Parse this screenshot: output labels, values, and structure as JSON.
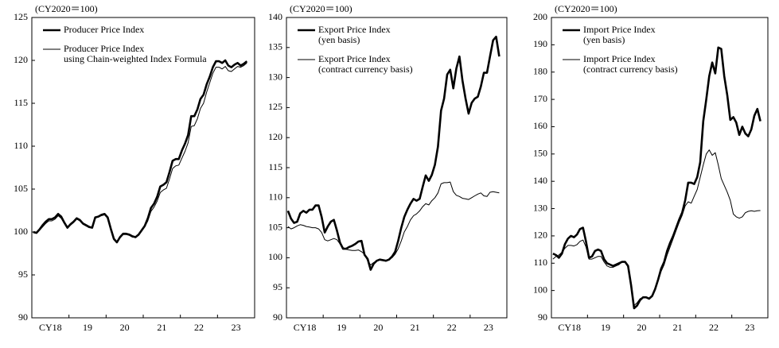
{
  "chart_data": [
    {
      "type": "line",
      "unit_note": "(CY2020＝100)",
      "ylim": [
        90,
        125
      ],
      "yticks": [
        90,
        95,
        100,
        105,
        110,
        115,
        120,
        125
      ],
      "categories": [
        "CY18",
        null,
        null,
        null,
        null,
        null,
        null,
        null,
        null,
        null,
        null,
        null,
        "19",
        null,
        null,
        null,
        null,
        null,
        null,
        null,
        null,
        null,
        null,
        null,
        "20",
        null,
        null,
        null,
        null,
        null,
        null,
        null,
        null,
        null,
        null,
        null,
        "21",
        null,
        null,
        null,
        null,
        null,
        null,
        null,
        null,
        null,
        null,
        null,
        "22",
        null,
        null,
        null,
        null,
        null,
        null,
        null,
        null,
        null,
        null,
        null,
        "23",
        null,
        null,
        null,
        null,
        null,
        null,
        null,
        null,
        null
      ],
      "series": [
        {
          "name": "Producer Price Index",
          "color": "#000000",
          "width": 2.6,
          "values": [
            100,
            99.9,
            100.3,
            100.8,
            101.2,
            101.5,
            101.5,
            101.7,
            102.1,
            101.8,
            101.1,
            100.5,
            100.9,
            101.2,
            101.6,
            101.4,
            101.0,
            100.8,
            100.6,
            100.5,
            101.7,
            101.8,
            102.0,
            102.1,
            101.7,
            100.4,
            99.2,
            98.8,
            99.4,
            99.8,
            99.8,
            99.7,
            99.5,
            99.4,
            99.7,
            100.2,
            100.7,
            101.6,
            102.8,
            103.3,
            104.1,
            105.3,
            105.5,
            105.8,
            107.0,
            108.3,
            108.5,
            108.5,
            109.5,
            110.3,
            111.3,
            113.5,
            113.5,
            114.3,
            115.5,
            116.0,
            117.2,
            118.1,
            119.2,
            119.9,
            119.9,
            119.7,
            120.0,
            119.4,
            119.2,
            119.5,
            119.7,
            119.4,
            119.6,
            119.9
          ]
        },
        {
          "name": "Producer Price Index\nusing Chain-weighted Index Formula",
          "color": "#000000",
          "width": 1,
          "values": [
            99.9,
            99.9,
            100.2,
            100.6,
            101.0,
            101.3,
            101.3,
            101.5,
            101.9,
            101.6,
            101.0,
            100.5,
            100.8,
            101.1,
            101.5,
            101.3,
            100.9,
            100.7,
            100.5,
            100.5,
            101.6,
            101.8,
            101.9,
            102.0,
            101.6,
            100.3,
            99.1,
            98.8,
            99.3,
            99.7,
            99.7,
            99.6,
            99.4,
            99.4,
            99.6,
            100.1,
            100.6,
            101.3,
            102.4,
            102.9,
            103.6,
            104.6,
            104.9,
            105.1,
            106.2,
            107.4,
            107.7,
            107.8,
            108.6,
            109.4,
            110.4,
            112.3,
            112.4,
            113.2,
            114.4,
            115.0,
            116.3,
            117.4,
            118.5,
            119.2,
            119.2,
            119.0,
            119.3,
            118.8,
            118.7,
            119.0,
            119.3,
            119.2,
            119.4,
            119.7
          ]
        }
      ]
    },
    {
      "type": "line",
      "unit_note": "(CY2020＝100)",
      "ylim": [
        90,
        140
      ],
      "yticks": [
        90,
        95,
        100,
        105,
        110,
        115,
        120,
        125,
        130,
        135,
        140
      ],
      "categories": [
        "CY18",
        null,
        null,
        null,
        null,
        null,
        null,
        null,
        null,
        null,
        null,
        null,
        "19",
        null,
        null,
        null,
        null,
        null,
        null,
        null,
        null,
        null,
        null,
        null,
        "20",
        null,
        null,
        null,
        null,
        null,
        null,
        null,
        null,
        null,
        null,
        null,
        "21",
        null,
        null,
        null,
        null,
        null,
        null,
        null,
        null,
        null,
        null,
        null,
        "22",
        null,
        null,
        null,
        null,
        null,
        null,
        null,
        null,
        null,
        null,
        null,
        "23",
        null,
        null,
        null,
        null,
        null,
        null,
        null,
        null,
        null
      ],
      "series": [
        {
          "name": "Export Price Index\n(yen basis)",
          "color": "#000000",
          "width": 2.6,
          "values": [
            107.8,
            106.5,
            105.8,
            106.0,
            107.4,
            107.8,
            107.5,
            108.0,
            108.0,
            108.7,
            108.7,
            106.8,
            104.2,
            105.2,
            106.0,
            106.3,
            104.5,
            102.5,
            101.5,
            101.5,
            101.8,
            102.0,
            102.3,
            102.7,
            102.8,
            100.5,
            99.8,
            98.0,
            99.0,
            99.5,
            99.7,
            99.6,
            99.5,
            99.7,
            100.2,
            101.0,
            102.8,
            105.0,
            106.8,
            108.0,
            109.0,
            109.8,
            109.5,
            109.8,
            111.8,
            113.7,
            112.8,
            113.8,
            115.5,
            118.5,
            124.5,
            126.5,
            130.5,
            131.3,
            128.2,
            131.5,
            133.5,
            129.5,
            126.5,
            124.0,
            125.8,
            126.5,
            126.8,
            128.5,
            130.8,
            130.8,
            133.5,
            136.2,
            136.8,
            133.5
          ]
        },
        {
          "name": "Export Price Index\n(contract currency basis)",
          "color": "#000000",
          "width": 1,
          "values": [
            105.2,
            104.8,
            105.0,
            105.3,
            105.5,
            105.4,
            105.2,
            105.1,
            105.0,
            105.0,
            104.8,
            104.2,
            103.0,
            102.8,
            103.0,
            103.2,
            103.0,
            102.3,
            101.7,
            101.4,
            101.3,
            101.2,
            101.2,
            101.3,
            101.0,
            100.6,
            99.5,
            98.8,
            99.2,
            99.5,
            99.6,
            99.5,
            99.5,
            99.8,
            100.0,
            100.6,
            101.5,
            102.8,
            104.3,
            105.2,
            106.3,
            107.0,
            107.3,
            107.8,
            108.5,
            109.0,
            108.8,
            109.5,
            110.0,
            110.8,
            112.3,
            112.5,
            112.5,
            112.6,
            111.0,
            110.4,
            110.2,
            109.9,
            109.8,
            109.7,
            110.0,
            110.3,
            110.6,
            110.8,
            110.3,
            110.2,
            110.9,
            111.0,
            110.9,
            110.8
          ]
        }
      ]
    },
    {
      "type": "line",
      "unit_note": "(CY2020＝100)",
      "ylim": [
        90,
        200
      ],
      "yticks": [
        90,
        100,
        110,
        120,
        130,
        140,
        150,
        160,
        170,
        180,
        190,
        200
      ],
      "categories": [
        "CY18",
        null,
        null,
        null,
        null,
        null,
        null,
        null,
        null,
        null,
        null,
        null,
        "19",
        null,
        null,
        null,
        null,
        null,
        null,
        null,
        null,
        null,
        null,
        null,
        "20",
        null,
        null,
        null,
        null,
        null,
        null,
        null,
        null,
        null,
        null,
        null,
        "21",
        null,
        null,
        null,
        null,
        null,
        null,
        null,
        null,
        null,
        null,
        null,
        "22",
        null,
        null,
        null,
        null,
        null,
        null,
        null,
        null,
        null,
        null,
        null,
        "23",
        null,
        null,
        null,
        null,
        null,
        null,
        null,
        null,
        null
      ],
      "series": [
        {
          "name": "Import Price Index\n(yen basis)",
          "color": "#000000",
          "width": 2.6,
          "values": [
            113.5,
            113.0,
            112.0,
            113.5,
            117.0,
            119.0,
            120.0,
            119.5,
            120.5,
            122.5,
            123.0,
            118.0,
            112.0,
            112.5,
            114.5,
            115.0,
            114.5,
            111.5,
            110.0,
            109.5,
            109.0,
            109.5,
            110.0,
            110.5,
            110.5,
            109.0,
            102.0,
            93.5,
            94.5,
            96.5,
            97.5,
            97.5,
            97.0,
            98.0,
            100.5,
            104.0,
            108.0,
            110.5,
            114.5,
            117.5,
            120.0,
            123.0,
            126.0,
            128.5,
            133.0,
            139.5,
            139.5,
            139.0,
            141.5,
            147.0,
            162.0,
            170.0,
            178.5,
            183.5,
            179.5,
            189.0,
            188.5,
            178.5,
            171.5,
            162.5,
            163.5,
            161.5,
            157.0,
            160.0,
            157.5,
            156.5,
            159.0,
            164.0,
            166.5,
            162.0
          ]
        },
        {
          "name": "Import Price Index\n(contract currency basis)",
          "color": "#000000",
          "width": 1,
          "values": [
            111.5,
            112.5,
            113.0,
            114.0,
            115.5,
            116.5,
            116.5,
            116.3,
            116.8,
            118.0,
            118.5,
            116.0,
            111.5,
            111.5,
            112.0,
            112.5,
            112.5,
            110.5,
            109.0,
            108.5,
            108.5,
            109.0,
            109.5,
            110.5,
            110.5,
            108.5,
            102.5,
            94.5,
            95.5,
            97.0,
            97.5,
            97.5,
            97.0,
            98.0,
            100.5,
            103.5,
            107.0,
            109.5,
            113.0,
            116.0,
            119.0,
            122.0,
            125.0,
            127.5,
            131.0,
            132.5,
            132.0,
            134.5,
            137.0,
            141.5,
            146.0,
            150.0,
            151.5,
            149.5,
            150.5,
            146.0,
            141.0,
            138.5,
            136.0,
            133.0,
            128.0,
            127.0,
            126.5,
            127.0,
            128.5,
            129.0,
            129.2,
            129.0,
            129.2,
            129.3
          ]
        }
      ]
    }
  ]
}
